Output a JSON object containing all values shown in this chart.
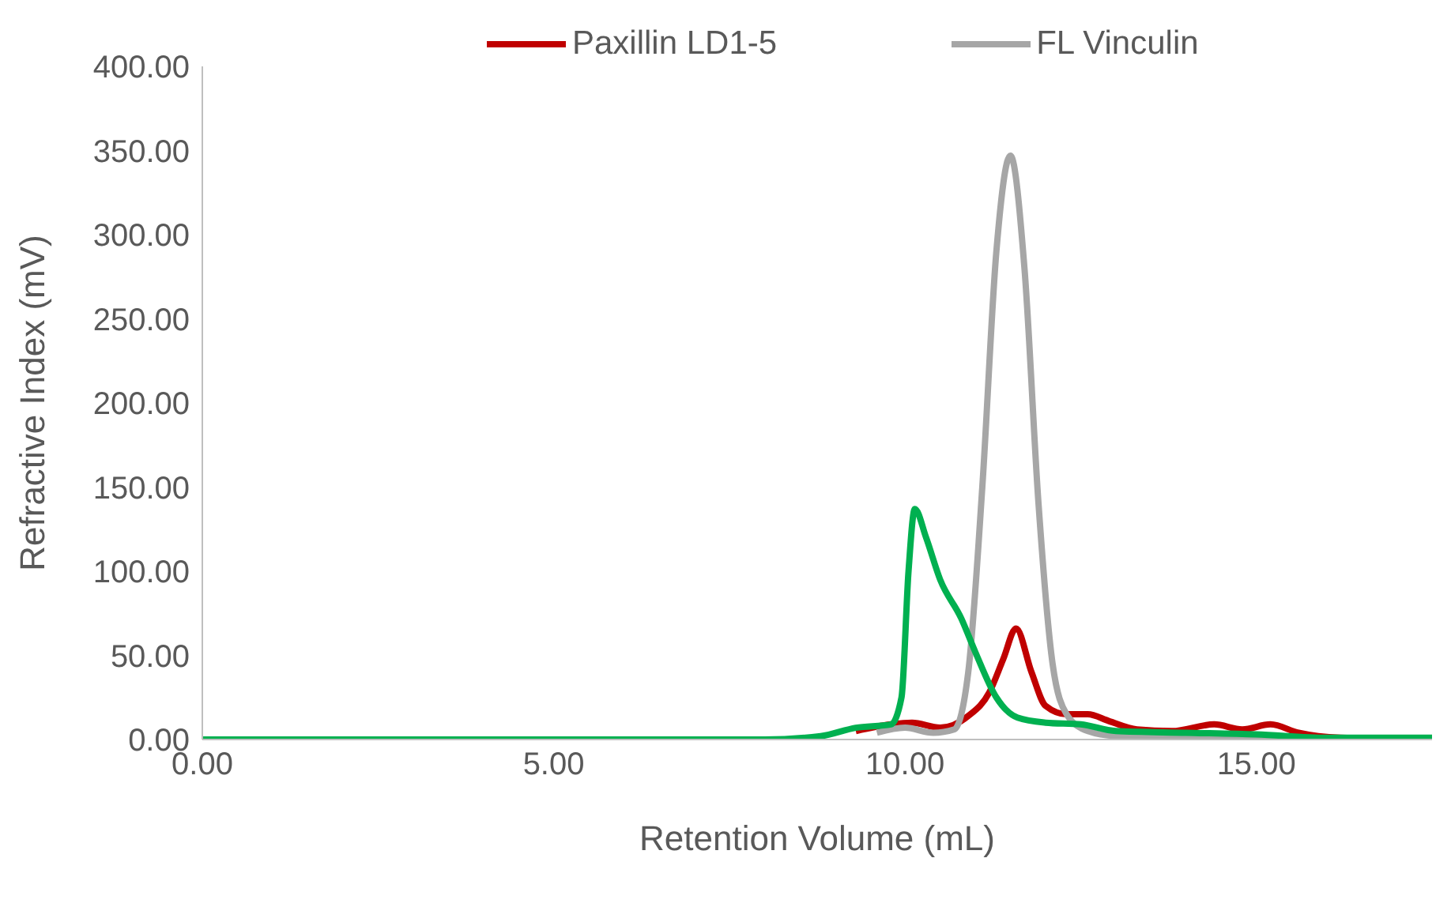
{
  "chart_data": {
    "type": "line",
    "xlabel": "Retention Volume (mL)",
    "ylabel": "Refractive Index (mV)",
    "xlim": [
      0,
      17.5
    ],
    "ylim": [
      0,
      400
    ],
    "xticks": [
      {
        "value": 0,
        "label": "0.00"
      },
      {
        "value": 5,
        "label": "5.00"
      },
      {
        "value": 10,
        "label": "10.00"
      },
      {
        "value": 15,
        "label": "15.00"
      }
    ],
    "yticks": [
      {
        "value": 0,
        "label": "0.00"
      },
      {
        "value": 50,
        "label": "50.00"
      },
      {
        "value": 100,
        "label": "100.00"
      },
      {
        "value": 150,
        "label": "150.00"
      },
      {
        "value": 200,
        "label": "200.00"
      },
      {
        "value": 250,
        "label": "250.00"
      },
      {
        "value": 300,
        "label": "300.00"
      },
      {
        "value": 350,
        "label": "350.00"
      },
      {
        "value": 400,
        "label": "400.00"
      }
    ],
    "grid": false,
    "legend": "top",
    "marker": "none",
    "line_style": "solid",
    "series": [
      {
        "name": "Paxillin LD1-5",
        "color": "#c00000",
        "x": [
          9.3,
          9.8,
          10.1,
          10.5,
          10.9,
          11.2,
          11.4,
          11.58,
          11.8,
          12.0,
          12.3,
          12.6,
          12.9,
          13.3,
          13.8,
          14.4,
          14.8,
          15.2,
          15.6,
          16.2,
          17.5
        ],
        "values": [
          5,
          9,
          10,
          7,
          14,
          28,
          48,
          66,
          40,
          20,
          15,
          15,
          11,
          6,
          5,
          9,
          6,
          9,
          4,
          1,
          0
        ]
      },
      {
        "name": "FL Vinculin",
        "color": "#a6a6a6",
        "x": [
          9.6,
          10.0,
          10.4,
          10.7,
          10.9,
          11.1,
          11.3,
          11.5,
          11.7,
          11.9,
          12.1,
          12.3,
          12.6,
          13.0,
          14,
          15,
          16,
          17.5
        ],
        "values": [
          4,
          7,
          4,
          6,
          40,
          150,
          290,
          347,
          280,
          140,
          45,
          15,
          5,
          2,
          1,
          1,
          0,
          0
        ]
      },
      {
        "color": "#00b050",
        "x": [
          0,
          5,
          8,
          8.8,
          9.3,
          9.8,
          9.95,
          10.05,
          10.14,
          10.3,
          10.5,
          10.8,
          11.0,
          11.3,
          11.6,
          12.0,
          12.5,
          13.0,
          14,
          15,
          16,
          17.5
        ],
        "values": [
          0,
          0,
          0,
          2,
          7,
          9,
          25,
          100,
          137,
          120,
          95,
          72,
          52,
          25,
          13,
          10,
          9,
          5,
          4,
          3,
          1,
          1
        ]
      }
    ]
  }
}
